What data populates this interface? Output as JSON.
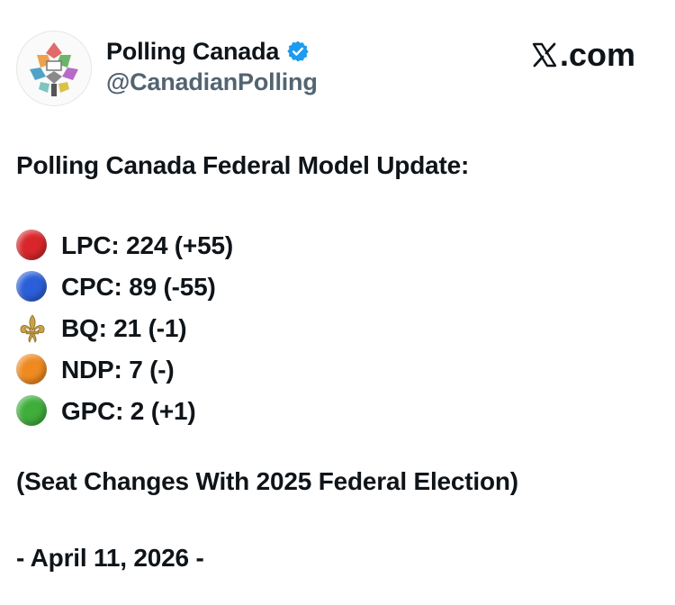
{
  "account": {
    "display_name": "Polling Canada",
    "handle": "@CanadianPolling",
    "verified": true
  },
  "brand": {
    "label": ".com",
    "icon": "x-logo-icon"
  },
  "post": {
    "headline": "Polling Canada Federal Model Update:",
    "parties": [
      {
        "icon": "red-circle-icon",
        "color": "#d8262b",
        "text": "LPC: 224 (+55)"
      },
      {
        "icon": "blue-circle-icon",
        "color": "#2b5fd9",
        "text": "CPC: 89 (-55)"
      },
      {
        "icon": "fleur-de-lis-icon",
        "color": "#c9a24a",
        "text": "BQ: 21 (-1)"
      },
      {
        "icon": "orange-circle-icon",
        "color": "#ee8a1f",
        "text": "NDP: 7 (-)"
      },
      {
        "icon": "green-circle-icon",
        "color": "#3fae3b",
        "text": "GPC: 2 (+1)"
      }
    ],
    "note": "(Seat Changes With 2025 Federal Election)",
    "date_line": "- April 11, 2026 -"
  }
}
